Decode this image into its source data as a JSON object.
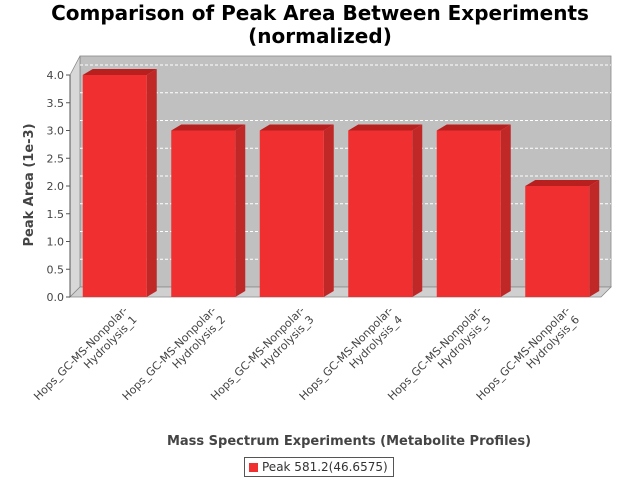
{
  "chart_data": {
    "type": "bar",
    "title_line1": "Comparison of Peak Area Between Experiments",
    "title_line2": "(normalized)",
    "xlabel": "Mass Spectrum Experiments (Metabolite Profiles)",
    "ylabel": "Peak Area (1e-3)",
    "categories": [
      "Hops_GC-MS-Nonpolar-Hydrolysis_1",
      "Hops_GC-MS-Nonpolar-Hydrolysis_2",
      "Hops_GC-MS-Nonpolar-Hydrolysis_3",
      "Hops_GC-MS-Nonpolar-Hydrolysis_4",
      "Hops_GC-MS-Nonpolar-Hydrolysis_5",
      "Hops_GC-MS-Nonpolar-Hydrolysis_6"
    ],
    "category_lines": [
      [
        "Hops_GC-MS-Nonpolar-",
        "Hydrolysis_1"
      ],
      [
        "Hops_GC-MS-Nonpolar-",
        "Hydrolysis_2"
      ],
      [
        "Hops_GC-MS-Nonpolar-",
        "Hydrolysis_3"
      ],
      [
        "Hops_GC-MS-Nonpolar-",
        "Hydrolysis_4"
      ],
      [
        "Hops_GC-MS-Nonpolar-",
        "Hydrolysis_5"
      ],
      [
        "Hops_GC-MS-Nonpolar-",
        "Hydrolysis_6"
      ]
    ],
    "series": [
      {
        "name": "Peak 581.2(46.6575)",
        "values": [
          4.0,
          3.0,
          3.0,
          3.0,
          3.0,
          2.0
        ]
      }
    ],
    "ylim": [
      0,
      4.0
    ],
    "yticks": [
      0.0,
      0.5,
      1.0,
      1.5,
      2.0,
      2.5,
      3.0,
      3.5,
      4.0
    ],
    "ytick_labels": [
      "0.0",
      "0.5",
      "1.0",
      "1.5",
      "2.0",
      "2.5",
      "3.0",
      "3.5",
      "4.0"
    ],
    "grid": true,
    "three_d": true,
    "legend_position": "bottom-center",
    "colors": {
      "bar_front": "#f03030",
      "bar_top": "#b82020",
      "bar_side": "#c02828",
      "plot_bg": "#c0c0c0",
      "plot_wall": "#d8d8d8",
      "plot_floor": "#d0d0d0",
      "gridline": "#ffffff"
    }
  }
}
